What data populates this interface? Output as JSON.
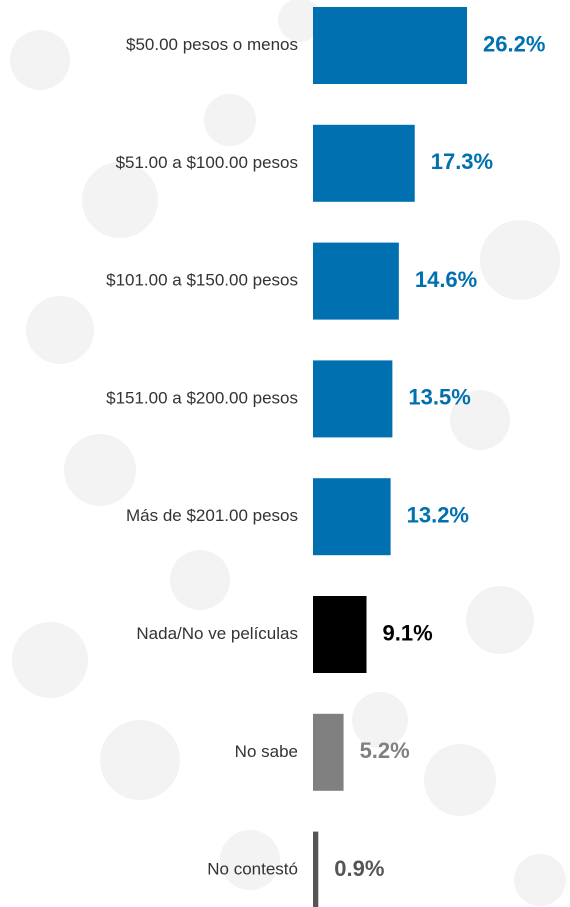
{
  "chart_data": {
    "type": "bar",
    "orientation": "horizontal",
    "categories": [
      "$50.00 pesos o menos",
      "$51.00 a $100.00 pesos",
      "$101.00 a $150.00 pesos",
      "$151.00 a $200.00 pesos",
      "Más de $201.00 pesos",
      "Nada/No ve películas",
      "No sabe",
      "No contestó"
    ],
    "values": [
      26.2,
      17.3,
      14.6,
      13.5,
      13.2,
      9.1,
      5.2,
      0.9
    ],
    "value_labels": [
      "26.2%",
      "17.3%",
      "14.6%",
      "13.5%",
      "13.2%",
      "9.1%",
      "5.2%",
      "0.9%"
    ],
    "colors": [
      "#0070b0",
      "#0070b0",
      "#0070b0",
      "#0070b0",
      "#0070b0",
      "#000000",
      "#808080",
      "#555555"
    ]
  }
}
